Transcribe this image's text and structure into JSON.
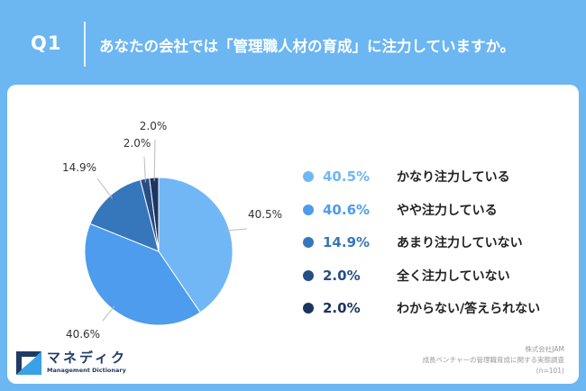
{
  "header": {
    "q_label": "Q1",
    "question": "あなたの会社では「管理職人材の育成」に注力していますか。"
  },
  "colors": {
    "background": "#6cb6f2",
    "card": "#ffffff"
  },
  "chart_data": {
    "type": "pie",
    "title": "",
    "slices": [
      {
        "label": "かなり注力している",
        "value": 40.5,
        "display": "40.5%",
        "color": "#71b7f5"
      },
      {
        "label": "やや注力している",
        "value": 40.6,
        "display": "40.6%",
        "color": "#4d9cee"
      },
      {
        "label": "あまり注力していない",
        "value": 14.9,
        "display": "14.9%",
        "color": "#3676bb"
      },
      {
        "label": "全く注力していない",
        "value": 2.0,
        "display": "2.0%",
        "color": "#274e84"
      },
      {
        "label": "わからない/答えられない",
        "value": 2.0,
        "display": "2.0%",
        "color": "#1c3560"
      }
    ],
    "legend_position": "right",
    "start_angle_deg": 0,
    "direction": "clockwise"
  },
  "logo": {
    "name": "マネディク",
    "sub": "Management Dictionary"
  },
  "source": {
    "line1": "株式会社JAM",
    "line2": "成長ベンチャーの管理職育成に関する実態調査",
    "line3": "(n=101)"
  }
}
